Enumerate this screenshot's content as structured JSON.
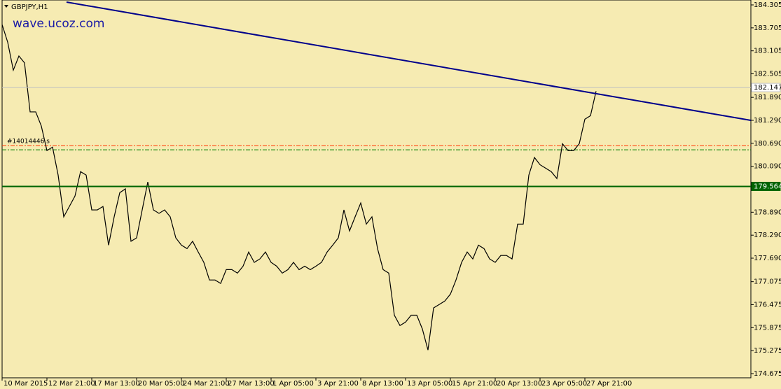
{
  "chart_data": {
    "type": "line",
    "title": "GBPJPY,H1",
    "watermark": "wave.ucoz.com",
    "categories": [
      "10 Mar 2015",
      null,
      null,
      null,
      null,
      null,
      null,
      null,
      "12 Mar 21:00",
      null,
      null,
      null,
      null,
      null,
      null,
      null,
      "17 Mar 13:00",
      null,
      null,
      null,
      null,
      null,
      null,
      null,
      "20 Mar 05:00",
      null,
      null,
      null,
      null,
      null,
      null,
      null,
      "24 Mar 21:00",
      null,
      null,
      null,
      null,
      null,
      null,
      null,
      "27 Mar 13:00",
      null,
      null,
      null,
      null,
      null,
      null,
      null,
      "1 Apr 05:00",
      null,
      null,
      null,
      null,
      null,
      null,
      null,
      "3 Apr 21:00",
      null,
      null,
      null,
      null,
      null,
      null,
      null,
      "8 Apr 13:00",
      null,
      null,
      null,
      null,
      null,
      null,
      null,
      "13 Apr 05:00",
      null,
      null,
      null,
      null,
      null,
      null,
      null,
      "15 Apr 21:00",
      null,
      null,
      null,
      null,
      null,
      null,
      null,
      "20 Apr 13:00",
      null,
      null,
      null,
      null,
      null,
      null,
      null,
      "23 Apr 05:00",
      null,
      null,
      null,
      null,
      null,
      null,
      null,
      "27 Apr 21:00",
      null,
      null
    ],
    "values": [
      183.79,
      183.33,
      182.6,
      182.97,
      182.79,
      181.51,
      181.51,
      181.14,
      180.5,
      180.59,
      179.86,
      178.77,
      179.04,
      179.31,
      179.95,
      179.86,
      178.95,
      178.95,
      179.04,
      178.03,
      178.77,
      179.4,
      179.5,
      178.13,
      178.22,
      178.95,
      179.68,
      178.95,
      178.86,
      178.95,
      178.77,
      178.22,
      178.03,
      177.94,
      178.13,
      177.85,
      177.58,
      177.12,
      177.12,
      177.03,
      177.39,
      177.39,
      177.3,
      177.48,
      177.85,
      177.58,
      177.67,
      177.85,
      177.58,
      177.48,
      177.3,
      177.39,
      177.58,
      177.39,
      177.48,
      177.39,
      177.48,
      177.58,
      177.85,
      178.03,
      178.22,
      178.95,
      178.4,
      178.77,
      179.13,
      178.58,
      178.77,
      177.94,
      177.39,
      177.3,
      176.2,
      175.93,
      176.02,
      176.2,
      176.2,
      175.84,
      175.29,
      176.39,
      176.48,
      176.57,
      176.75,
      177.12,
      177.58,
      177.85,
      177.67,
      178.03,
      177.94,
      177.67,
      177.58,
      177.76,
      177.76,
      177.67,
      178.58,
      178.58,
      179.86,
      180.32,
      180.13,
      180.04,
      179.95,
      179.77,
      180.68,
      180.5,
      180.5,
      180.68,
      181.32,
      181.41,
      182.05
    ],
    "color": "#000000",
    "ylim": [
      174.565,
      184.433
    ],
    "yticks": [
      184.305,
      183.705,
      183.105,
      182.505,
      {
        "value": 181.89,
        "label": "181.890"
      },
      {
        "value": 181.29,
        "label": "181.290"
      },
      {
        "value": 180.69,
        "label": "180.690"
      },
      {
        "value": 180.09,
        "label": "180.090"
      },
      {
        "value": 178.89,
        "label": "178.890"
      },
      {
        "value": 178.29,
        "label": "178.290"
      },
      {
        "value": 177.69,
        "label": "177.690"
      },
      177.075,
      176.475,
      175.875,
      175.275,
      174.675
    ],
    "hlines": [
      {
        "value": 182.147,
        "color": "#c0c0c0"
      },
      {
        "value": 179.564,
        "color": "#006400"
      }
    ],
    "order_lines": [
      {
        "value": 180.63,
        "color": "#ff3300"
      },
      {
        "value": 180.52,
        "color": "#008000"
      }
    ],
    "order_label": "#14014446 s",
    "trendline": {
      "x": [
        11.5,
        133.6
      ],
      "values": [
        184.378,
        181.289
      ],
      "color": "#00008b"
    }
  }
}
